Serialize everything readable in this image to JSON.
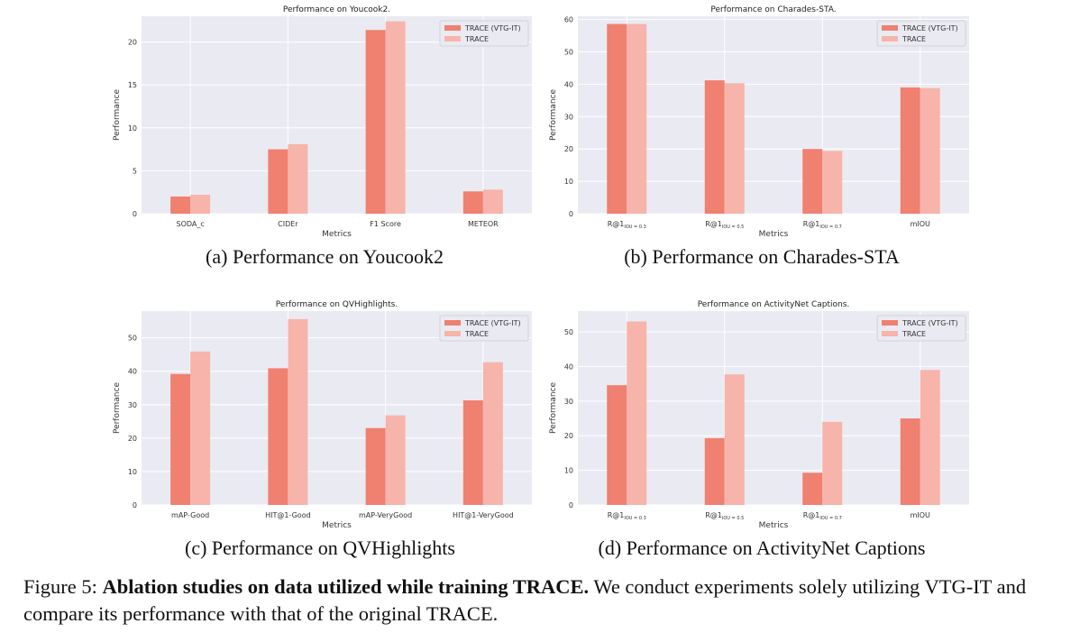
{
  "chart_data": [
    {
      "type": "bar",
      "title": "Performance on Youcook2.",
      "xlabel": "Metrics",
      "ylabel": "Performance",
      "ylim": [
        0,
        23
      ],
      "yticks": [
        0,
        5,
        10,
        15,
        20
      ],
      "categories": [
        {
          "main": "SODA_c",
          "sub": ""
        },
        {
          "main": "CIDEr",
          "sub": ""
        },
        {
          "main": "F1 Score",
          "sub": ""
        },
        {
          "main": "METEOR",
          "sub": ""
        }
      ],
      "series": [
        {
          "name": "TRACE (VTG-IT)",
          "color": "#f08070",
          "values": [
            2.0,
            7.5,
            21.4,
            2.6
          ]
        },
        {
          "name": "TRACE",
          "color": "#f7b4aa",
          "values": [
            2.2,
            8.1,
            22.4,
            2.8
          ]
        }
      ],
      "grid": true,
      "legend": "top-right"
    },
    {
      "type": "bar",
      "title": "Performance on Charades-STA.",
      "xlabel": "Metrics",
      "ylabel": "Performance",
      "ylim": [
        0,
        61
      ],
      "yticks": [
        0,
        10,
        20,
        30,
        40,
        50,
        60
      ],
      "categories": [
        {
          "main": "R@1",
          "sub": "IOU = 0.3"
        },
        {
          "main": "R@1",
          "sub": "IOU = 0.5"
        },
        {
          "main": "R@1",
          "sub": "IOU = 0.7"
        },
        {
          "main": "mIOU",
          "sub": ""
        }
      ],
      "series": [
        {
          "name": "TRACE (VTG-IT)",
          "color": "#f08070",
          "values": [
            58.6,
            41.2,
            20.0,
            39.0
          ]
        },
        {
          "name": "TRACE",
          "color": "#f7b4aa",
          "values": [
            58.6,
            40.3,
            19.4,
            38.8
          ]
        }
      ],
      "grid": true,
      "legend": "top-right"
    },
    {
      "type": "bar",
      "title": "Performance on QVHighlights.",
      "xlabel": "Metrics",
      "ylabel": "Performance",
      "ylim": [
        0,
        58
      ],
      "yticks": [
        0,
        10,
        20,
        30,
        40,
        50
      ],
      "categories": [
        {
          "main": "mAP-Good",
          "sub": ""
        },
        {
          "main": "HIT@1-Good",
          "sub": ""
        },
        {
          "main": "mAP-VeryGood",
          "sub": ""
        },
        {
          "main": "HIT@1-VeryGood",
          "sub": ""
        }
      ],
      "series": [
        {
          "name": "TRACE (VTG-IT)",
          "color": "#f08070",
          "values": [
            39.2,
            40.9,
            23.0,
            31.3
          ]
        },
        {
          "name": "TRACE",
          "color": "#f7b4aa",
          "values": [
            45.9,
            55.6,
            26.8,
            42.7
          ]
        }
      ],
      "grid": true,
      "legend": "top-right"
    },
    {
      "type": "bar",
      "title": "Performance on ActivityNet Captions.",
      "xlabel": "Metrics",
      "ylabel": "Performance",
      "ylim": [
        0,
        56
      ],
      "yticks": [
        0,
        10,
        20,
        30,
        40,
        50
      ],
      "categories": [
        {
          "main": "R@1",
          "sub": "IOU = 0.3"
        },
        {
          "main": "R@1",
          "sub": "IOU = 0.5"
        },
        {
          "main": "R@1",
          "sub": "IOU = 0.7"
        },
        {
          "main": "mIOU",
          "sub": ""
        }
      ],
      "series": [
        {
          "name": "TRACE (VTG-IT)",
          "color": "#f08070",
          "values": [
            34.6,
            19.3,
            9.3,
            25.0
          ]
        },
        {
          "name": "TRACE",
          "color": "#f7b4aa",
          "values": [
            53.0,
            37.7,
            24.0,
            39.0
          ]
        }
      ],
      "grid": true,
      "legend": "top-right"
    }
  ],
  "subcaptions": [
    "(a) Performance on Youcook2",
    "(b) Performance on Charades-STA",
    "(c) Performance on QVHighlights",
    "(d) Performance on ActivityNet Captions"
  ],
  "figure_caption": {
    "label": "Figure 5:",
    "bold": "Ablation studies on data utilized while training TRACE.",
    "text": "We conduct experiments solely utilizing VTG-IT and compare its performance with that of the original TRACE."
  }
}
